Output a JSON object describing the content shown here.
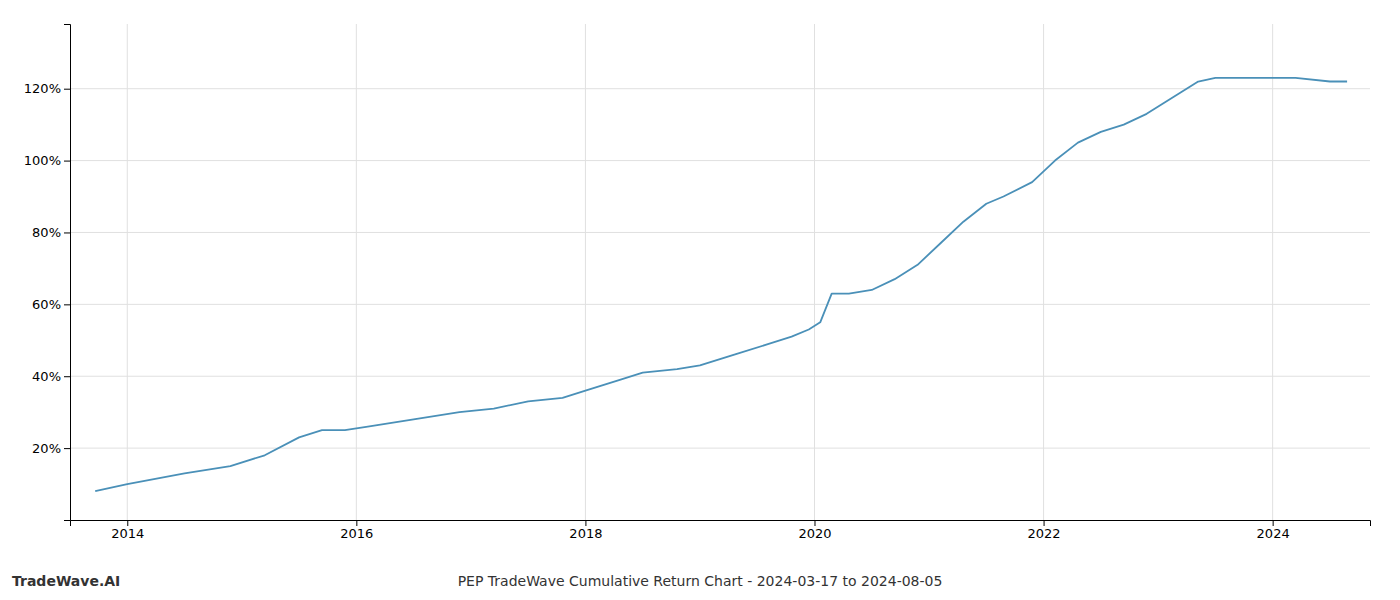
{
  "chart_data": {
    "type": "line",
    "title": "PEP TradeWave Cumulative Return Chart - 2024-03-17 to 2024-08-05",
    "annotations": [
      "TradeWave.AI"
    ],
    "color": "#4a90b8",
    "grid": true,
    "x": [
      2013.72,
      2014.0,
      2014.5,
      2014.9,
      2015.2,
      2015.5,
      2015.7,
      2015.9,
      2016.1,
      2016.5,
      2016.9,
      2017.2,
      2017.5,
      2017.8,
      2018.0,
      2018.3,
      2018.5,
      2018.8,
      2019.0,
      2019.3,
      2019.6,
      2019.8,
      2019.95,
      2020.05,
      2020.15,
      2020.3,
      2020.5,
      2020.7,
      2020.9,
      2021.1,
      2021.3,
      2021.5,
      2021.65,
      2021.9,
      2022.1,
      2022.3,
      2022.5,
      2022.7,
      2022.9,
      2023.05,
      2023.2,
      2023.35,
      2023.5,
      2023.7,
      2024.0,
      2024.2,
      2024.5,
      2024.65
    ],
    "values": [
      0.08,
      0.1,
      0.13,
      0.15,
      0.18,
      0.23,
      0.25,
      0.25,
      0.26,
      0.28,
      0.3,
      0.31,
      0.33,
      0.34,
      0.36,
      0.39,
      0.41,
      0.42,
      0.43,
      0.46,
      0.49,
      0.51,
      0.53,
      0.55,
      0.63,
      0.63,
      0.64,
      0.67,
      0.71,
      0.77,
      0.83,
      0.88,
      0.9,
      0.94,
      1.0,
      1.05,
      1.08,
      1.1,
      1.13,
      1.16,
      1.19,
      1.22,
      1.23,
      1.23,
      1.23,
      1.23,
      1.22,
      1.22
    ],
    "xlim": [
      2013.5,
      2024.85
    ],
    "xticks": [
      2014,
      2016,
      2018,
      2020,
      2022,
      2024
    ],
    "ylim": [
      0.0,
      1.38
    ],
    "yticks": [
      {
        "value": 0.2,
        "label": "20%"
      },
      {
        "value": 0.4,
        "label": "40%"
      },
      {
        "value": 0.6,
        "label": "60%"
      },
      {
        "value": 0.8,
        "label": "80%"
      },
      {
        "value": 1.0,
        "label": "100%"
      },
      {
        "value": 1.2,
        "label": "120%"
      }
    ]
  }
}
